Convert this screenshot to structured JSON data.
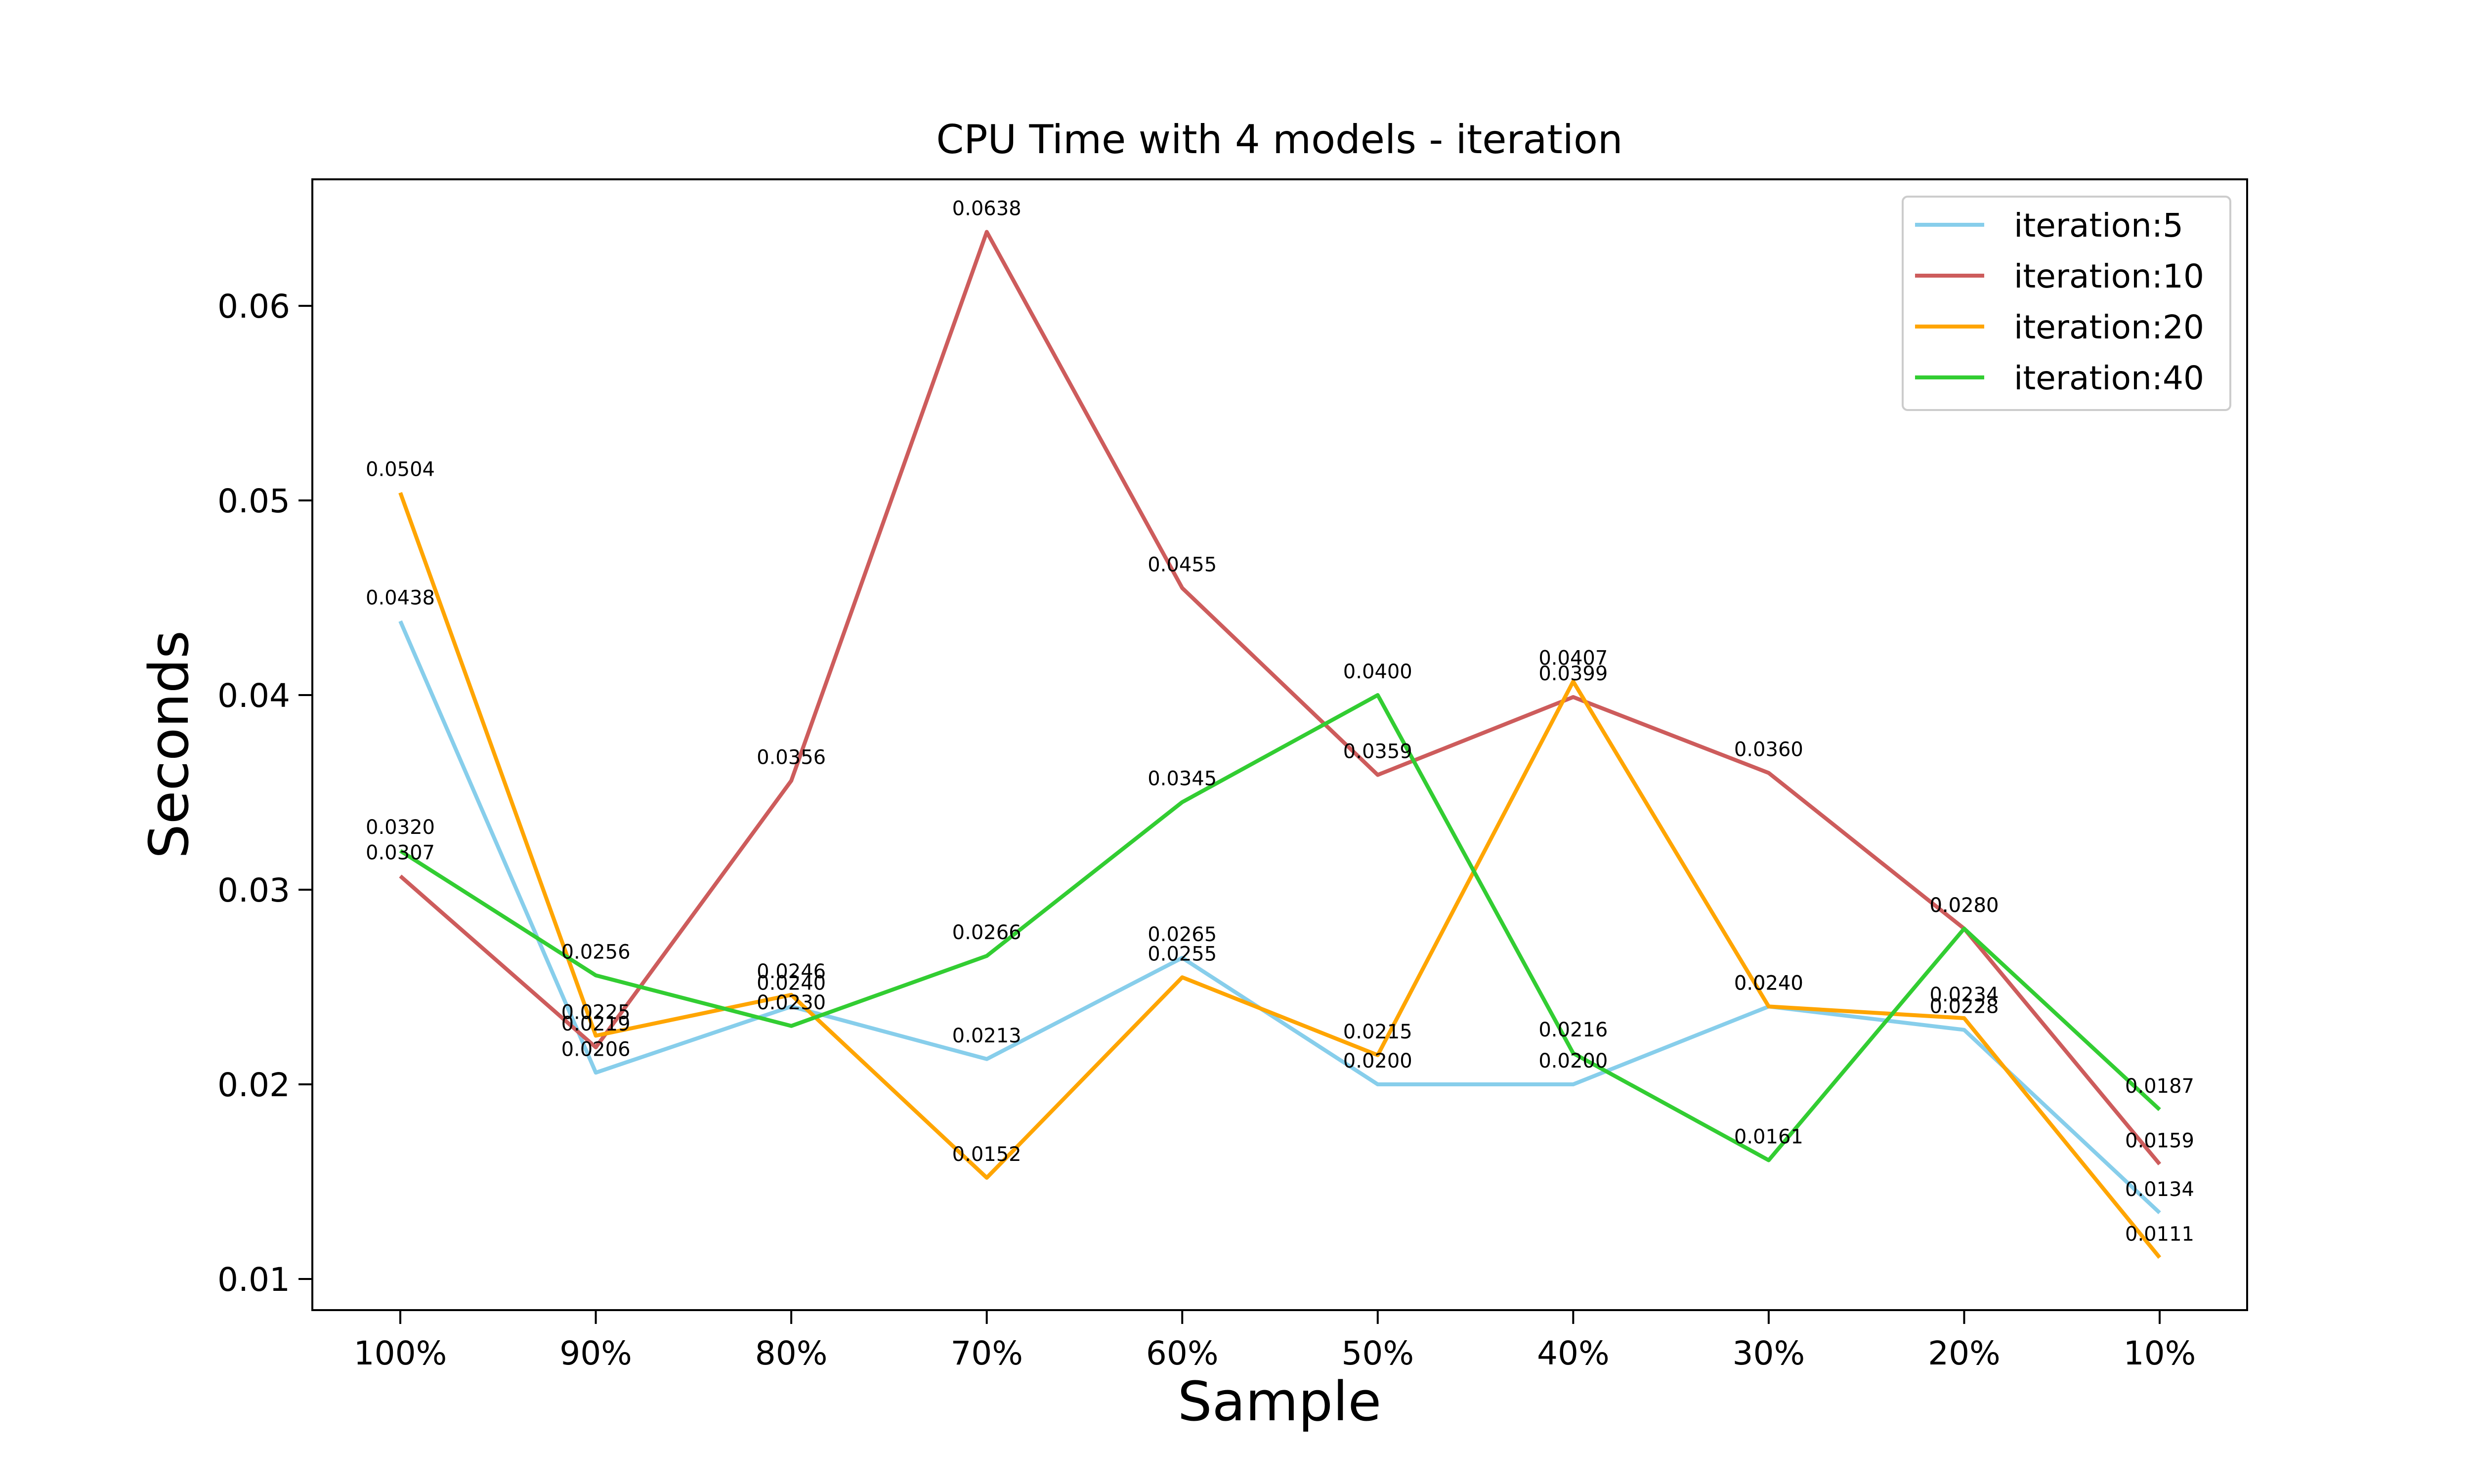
{
  "chart_data": {
    "type": "line",
    "title": "CPU Time with 4 models - iteration",
    "xlabel": "Sample",
    "ylabel": "Seconds",
    "categories": [
      "100%",
      "90%",
      "80%",
      "70%",
      "60%",
      "50%",
      "40%",
      "30%",
      "20%",
      "10%"
    ],
    "yticks": [
      "0.01",
      "0.02",
      "0.03",
      "0.04",
      "0.05",
      "0.06"
    ],
    "ylim": [
      0.0084,
      0.0665
    ],
    "grid": false,
    "legend_position": "top-right",
    "series": [
      {
        "name": "iteration:5",
        "color": "#87CEEB",
        "values": [
          0.0438,
          0.0206,
          0.024,
          0.0213,
          0.0265,
          0.02,
          0.02,
          0.024,
          0.0228,
          0.0134
        ],
        "labels": [
          "0.0438",
          "0.0206",
          "0.0240",
          "0.0213",
          "0.0265",
          "0.0200",
          "0.0200",
          "0.0240",
          "0.0228",
          "0.0134"
        ]
      },
      {
        "name": "iteration:10",
        "color": "#CD5C5C",
        "values": [
          0.0307,
          0.0219,
          0.0356,
          0.0638,
          0.0455,
          0.0359,
          0.0399,
          0.036,
          0.028,
          0.0159
        ],
        "labels": [
          "0.0307",
          "0.0219",
          "0.0356",
          "0.0638",
          "0.0455",
          "0.0359",
          "0.0399",
          "0.0360",
          "0.0280",
          "0.0159"
        ]
      },
      {
        "name": "iteration:20",
        "color": "#FFA500",
        "values": [
          0.0504,
          0.0225,
          0.0246,
          0.0152,
          0.0255,
          0.0215,
          0.0407,
          0.024,
          0.0234,
          0.0111
        ],
        "labels": [
          "0.0504",
          "0.0225",
          "0.0246",
          "0.0152",
          "0.0255",
          "0.0215",
          "0.0407",
          "0.0240",
          "0.0234",
          "0.0111"
        ]
      },
      {
        "name": "iteration:40",
        "color": "#32CD32",
        "values": [
          0.032,
          0.0256,
          0.023,
          0.0266,
          0.0345,
          0.04,
          0.0216,
          0.0161,
          0.028,
          0.0187
        ],
        "labels": [
          "0.0320",
          "0.0256",
          "0.0230",
          "0.0266",
          "0.0345",
          "0.0400",
          "0.0216",
          "0.0161",
          "0.0280",
          "0.0187"
        ]
      }
    ]
  }
}
